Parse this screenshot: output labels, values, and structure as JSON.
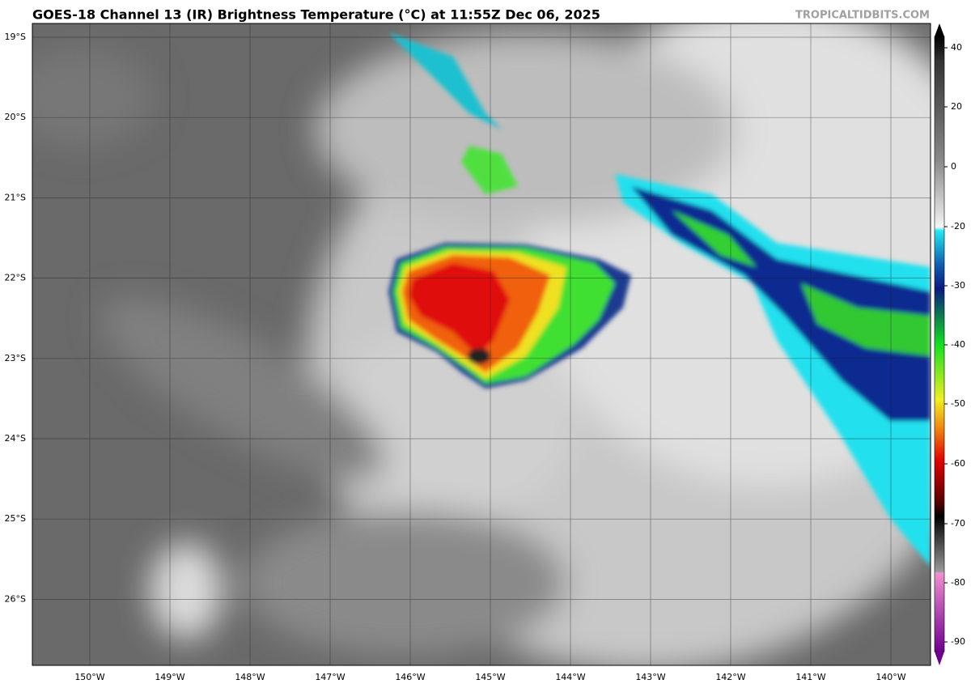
{
  "header": {
    "title": "GOES-18 Channel 13 (IR) Brightness Temperature (°C) at 11:55Z Dec 06, 2025",
    "credit": "TROPICALTIDBITS.COM"
  },
  "map": {
    "lat_labels": [
      "19°S",
      "20°S",
      "21°S",
      "22°S",
      "23°S",
      "24°S",
      "25°S",
      "26°S"
    ],
    "lon_labels": [
      "150°W",
      "149°W",
      "148°W",
      "147°W",
      "146°W",
      "145°W",
      "144°W",
      "143°W",
      "142°W",
      "141°W",
      "140°W"
    ]
  },
  "colorbar": {
    "ticks": [
      40,
      20,
      0,
      -20,
      -30,
      -40,
      -50,
      -60,
      -70,
      -80,
      -90
    ]
  }
}
